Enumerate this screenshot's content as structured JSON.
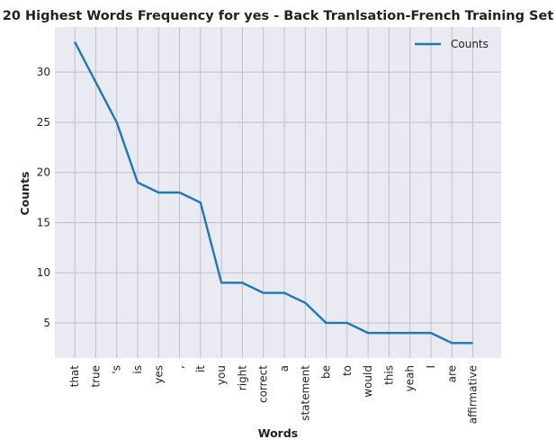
{
  "chart_data": {
    "type": "line",
    "title": "20 Highest Words Frequency for yes - Back Tranlsation-French Training Set",
    "xlabel": "Words",
    "ylabel": "Counts",
    "categories": [
      "that",
      "true",
      "'s",
      "is",
      "yes",
      ",",
      "it",
      "you",
      "right",
      "correct",
      "a",
      "statement",
      "be",
      "to",
      "would",
      "this",
      "yeah",
      "I",
      "are",
      "affirmative"
    ],
    "series": [
      {
        "name": "Counts",
        "values": [
          33,
          29,
          25,
          19,
          18,
          18,
          17,
          9,
          9,
          8,
          8,
          7,
          5,
          5,
          4,
          4,
          4,
          4,
          3,
          3
        ],
        "color": "#1f77b4"
      }
    ],
    "yticks": [
      5,
      10,
      15,
      20,
      25,
      30
    ],
    "ylim": [
      1.5,
      34.5
    ],
    "grid": true,
    "legend_position": "top-right",
    "background": "#eaeaf2"
  }
}
